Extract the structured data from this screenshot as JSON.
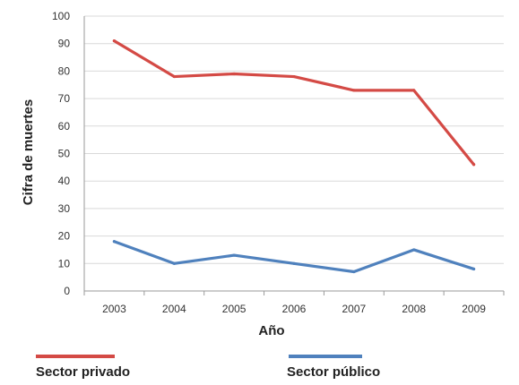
{
  "chart_data": {
    "type": "line",
    "title": "",
    "xlabel": "Año",
    "ylabel": "Cifra de muertes",
    "categories": [
      "2003",
      "2004",
      "2005",
      "2006",
      "2007",
      "2008",
      "2009"
    ],
    "yticks": [
      "0",
      "10",
      "20",
      "30",
      "40",
      "50",
      "60",
      "70",
      "80",
      "90",
      "100"
    ],
    "ylim": [
      0,
      100
    ],
    "grid": true,
    "legend_position": "bottom",
    "series": [
      {
        "name": "Sector privado",
        "color": "#d44a45",
        "values": [
          91,
          78,
          79,
          78,
          73,
          73,
          46
        ]
      },
      {
        "name": "Sector público",
        "color": "#4f81bd",
        "values": [
          18,
          10,
          13,
          10,
          7,
          15,
          8
        ]
      }
    ]
  }
}
